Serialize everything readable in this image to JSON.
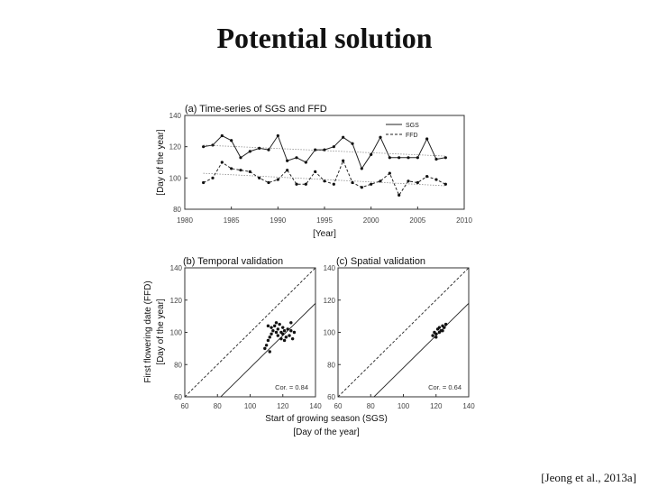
{
  "slide": {
    "title": "Potential solution",
    "citation": "[Jeong et al., 2013a]"
  },
  "chart_data": [
    {
      "type": "line",
      "title": "(a) Time-series of SGS and FFD",
      "xlabel": "[Year]",
      "ylabel": "[Day of the year]",
      "xlim": [
        1980,
        2010
      ],
      "ylim": [
        80,
        140
      ],
      "xticks": [
        1980,
        1985,
        1990,
        1995,
        2000,
        2005,
        2010
      ],
      "yticks": [
        80,
        100,
        120,
        140
      ],
      "legend_position": "top-right",
      "x": [
        1982,
        1983,
        1984,
        1985,
        1986,
        1987,
        1988,
        1989,
        1990,
        1991,
        1992,
        1993,
        1994,
        1995,
        1996,
        1997,
        1998,
        1999,
        2000,
        2001,
        2002,
        2003,
        2004,
        2005,
        2006,
        2007,
        2008
      ],
      "series": [
        {
          "name": "SGS",
          "style": "solid",
          "values": [
            120,
            121,
            127,
            124,
            113,
            117,
            119,
            118,
            127,
            111,
            113,
            110,
            118,
            118,
            120,
            126,
            122,
            106,
            115,
            126,
            113,
            113,
            113,
            113,
            125,
            112,
            113
          ],
          "trend": [
            121,
            114
          ]
        },
        {
          "name": "FFD",
          "style": "dashed",
          "values": [
            97,
            100,
            110,
            106,
            105,
            104,
            100,
            97,
            99,
            105,
            96,
            96,
            104,
            98,
            96,
            111,
            97,
            94,
            96,
            98,
            103,
            89,
            98,
            97,
            101,
            99,
            96
          ],
          "trend": [
            103,
            95
          ]
        }
      ]
    },
    {
      "type": "scatter",
      "title": "(b) Temporal validation",
      "xlabel": "Start of growing season (SGS)",
      "xlabel2": "[Day of the year]",
      "ylabel": "First flowering date (FFD)",
      "ylabel2": "[Day of the year]",
      "xlim": [
        60,
        140
      ],
      "ylim": [
        60,
        140
      ],
      "xticks": [
        60,
        80,
        100,
        120,
        140
      ],
      "yticks": [
        60,
        80,
        100,
        120,
        140
      ],
      "annotation": "Cor. = 0.84",
      "reference_lines": [
        {
          "style": "dashed",
          "slope": 1,
          "intercept": 0
        },
        {
          "style": "solid",
          "slope": 1,
          "intercept": -22
        }
      ],
      "points": [
        [
          110,
          92
        ],
        [
          111,
          95
        ],
        [
          112,
          97
        ],
        [
          113,
          99
        ],
        [
          111,
          104
        ],
        [
          113,
          103
        ],
        [
          114,
          101
        ],
        [
          115,
          104
        ],
        [
          116,
          100
        ],
        [
          117,
          98
        ],
        [
          117,
          102
        ],
        [
          118,
          105
        ],
        [
          119,
          100
        ],
        [
          119,
          96
        ],
        [
          120,
          99
        ],
        [
          120,
          103
        ],
        [
          121,
          101
        ],
        [
          122,
          97
        ],
        [
          123,
          102
        ],
        [
          124,
          98
        ],
        [
          125,
          106
        ],
        [
          125,
          101
        ],
        [
          126,
          96
        ],
        [
          127,
          100
        ],
        [
          112,
          88
        ],
        [
          109,
          90
        ],
        [
          116,
          106
        ],
        [
          121,
          95
        ]
      ]
    },
    {
      "type": "scatter",
      "title": "(c) Spatial validation",
      "xlim": [
        60,
        140
      ],
      "ylim": [
        60,
        140
      ],
      "xticks": [
        60,
        80,
        100,
        120,
        140
      ],
      "yticks": [
        60,
        80,
        100,
        120,
        140
      ],
      "annotation": "Cor. = 0.64",
      "reference_lines": [
        {
          "style": "dashed",
          "slope": 1,
          "intercept": 0
        },
        {
          "style": "solid",
          "slope": 1,
          "intercept": -22
        }
      ],
      "points": [
        [
          118,
          98
        ],
        [
          119,
          100
        ],
        [
          120,
          99
        ],
        [
          121,
          102
        ],
        [
          122,
          100
        ],
        [
          123,
          101
        ],
        [
          124,
          104
        ],
        [
          125,
          103
        ],
        [
          120,
          97
        ],
        [
          122,
          103
        ],
        [
          124,
          101
        ],
        [
          126,
          105
        ]
      ]
    }
  ]
}
